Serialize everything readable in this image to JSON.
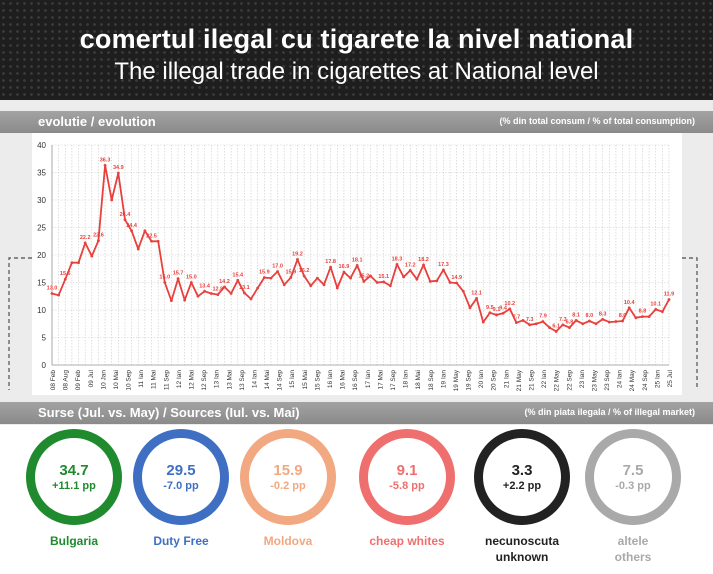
{
  "header": {
    "title_ro": "comertul ilegal cu tigarete la nivel national",
    "title_en": "The illegal trade in cigarettes at National level"
  },
  "evolution_bar": {
    "label": "evolutie / evolution",
    "unit": "(% din total consum / % of total consumption)"
  },
  "sources_bar": {
    "label": "Surse (Jul. vs. May) / Sources (Iul. vs. Mai)",
    "unit": "(% din piata ilegala / % of illegal market)"
  },
  "chart_data": {
    "type": "line",
    "title": "",
    "xlabel": "",
    "ylabel": "",
    "ylim": [
      0,
      40
    ],
    "yticks": [
      0,
      5,
      10,
      15,
      20,
      25,
      30,
      35,
      40
    ],
    "grid": true,
    "color": "#e8403c",
    "x_tick_labels": [
      "08 Feb",
      "08 Aug",
      "09 Feb",
      "09 Jul",
      "10 Jan",
      "10 Mai",
      "10 Sep",
      "11 Ian",
      "11 Mai",
      "11 Sep",
      "12 Ian",
      "12 Mai",
      "12 Sep",
      "13 Ian",
      "13 Mai",
      "13 Sep",
      "14 Ian",
      "14 Mai",
      "14 Sep",
      "15 Ian",
      "15 Mai",
      "15 Sep",
      "16 Ian",
      "16 Mai",
      "16 Sep",
      "17 Ian",
      "17 Mai",
      "17 Sep",
      "18 Ian",
      "18 Mai",
      "18 Sep",
      "19 Ian",
      "19 May",
      "19 Sep",
      "20 Ian",
      "20 Sep",
      "21 Ian",
      "21 May",
      "21 Sep",
      "22 Ian",
      "22 May",
      "22 Sep",
      "23 Ian",
      "23 May",
      "23 Sep",
      "24 Ian",
      "24 May",
      "24 Sep",
      "25 Ian",
      "25 Jul"
    ],
    "series": [
      {
        "values": [
          13.0,
          12.7,
          15.6,
          18.6,
          18.6,
          22.2,
          19.8,
          22.6,
          36.3,
          30.0,
          34.9,
          26.4,
          24.4,
          21.1,
          24.4,
          22.5,
          22.5,
          15.0,
          11.7,
          15.7,
          11.8,
          15.0,
          12.5,
          13.4,
          13.0,
          12.8,
          14.2,
          13.0,
          15.4,
          13.1,
          12.0,
          14.0,
          15.9,
          15.8,
          17.0,
          14.6,
          15.9,
          19.2,
          16.2,
          14.4,
          15.8,
          14.6,
          17.8,
          14.0,
          16.9,
          15.8,
          18.1,
          15.2,
          16.2,
          15.0,
          15.1,
          14.4,
          18.3,
          16.0,
          17.2,
          15.6,
          18.2,
          15.2,
          15.3,
          17.3,
          15.0,
          14.9,
          13.4,
          10.4,
          12.1,
          7.8,
          9.5,
          9.1,
          9.4,
          10.2,
          7.7,
          8.1,
          7.3,
          7.5,
          7.9,
          6.8,
          6.1,
          7.3,
          6.8,
          8.1,
          7.5,
          8.0,
          7.5,
          8.3,
          7.8,
          7.9,
          8.0,
          10.4,
          8.6,
          8.8,
          8.8,
          10.1,
          9.7,
          11.9
        ],
        "labels": [
          "13.0",
          "",
          "15.6",
          "",
          "",
          "22.2",
          "",
          "22.6",
          "36.3",
          "",
          "34.9",
          "26.4",
          "24.4",
          "",
          "",
          "22.5",
          "",
          "15.0",
          "",
          "15.7",
          "",
          "15.0",
          "",
          "13.4",
          "",
          "12.8",
          "14.2",
          "",
          "15.4",
          "13.1",
          "",
          "",
          "15.9",
          "",
          "17.0",
          "",
          "15.9",
          "19.2",
          "16.2",
          "",
          "",
          "",
          "17.8",
          "",
          "16.9",
          "",
          "18.1",
          "15.2",
          "",
          "",
          "15.1",
          "",
          "18.3",
          "",
          "17.2",
          "",
          "18.2",
          "",
          "",
          "17.3",
          "",
          "14.9",
          "",
          "",
          "12.1",
          "",
          "9.5",
          "9.1",
          "9.4",
          "10.2",
          "7.7",
          "",
          "7.3",
          "",
          "7.9",
          "",
          "6.1",
          "7.3",
          "6.8",
          "8.1",
          "",
          "8.0",
          "",
          "8.3",
          "",
          "",
          "8.0",
          "10.4",
          "",
          "8.8",
          "",
          "10.1",
          "",
          "11.9"
        ]
      }
    ]
  },
  "sources": [
    {
      "name": "Bulgaria",
      "name2": "",
      "value": "34.7",
      "change": "+11.1 pp",
      "color": "#1f8a2e"
    },
    {
      "name": "Duty Free",
      "name2": "",
      "value": "29.5",
      "change": "-7.0 pp",
      "color": "#3f6fc2"
    },
    {
      "name": "Moldova",
      "name2": "",
      "value": "15.9",
      "change": "-0.2 pp",
      "color": "#f2a880"
    },
    {
      "name": "cheap whites",
      "name2": "",
      "value": "9.1",
      "change": "-5.8 pp",
      "color": "#ef6f6e"
    },
    {
      "name": "necunoscuta",
      "name2": "unknown",
      "value": "3.3",
      "change": "+2.2 pp",
      "color": "#222222"
    },
    {
      "name": "altele",
      "name2": "others",
      "value": "7.5",
      "change": "-0.3 pp",
      "color": "#a9a9a9"
    }
  ]
}
